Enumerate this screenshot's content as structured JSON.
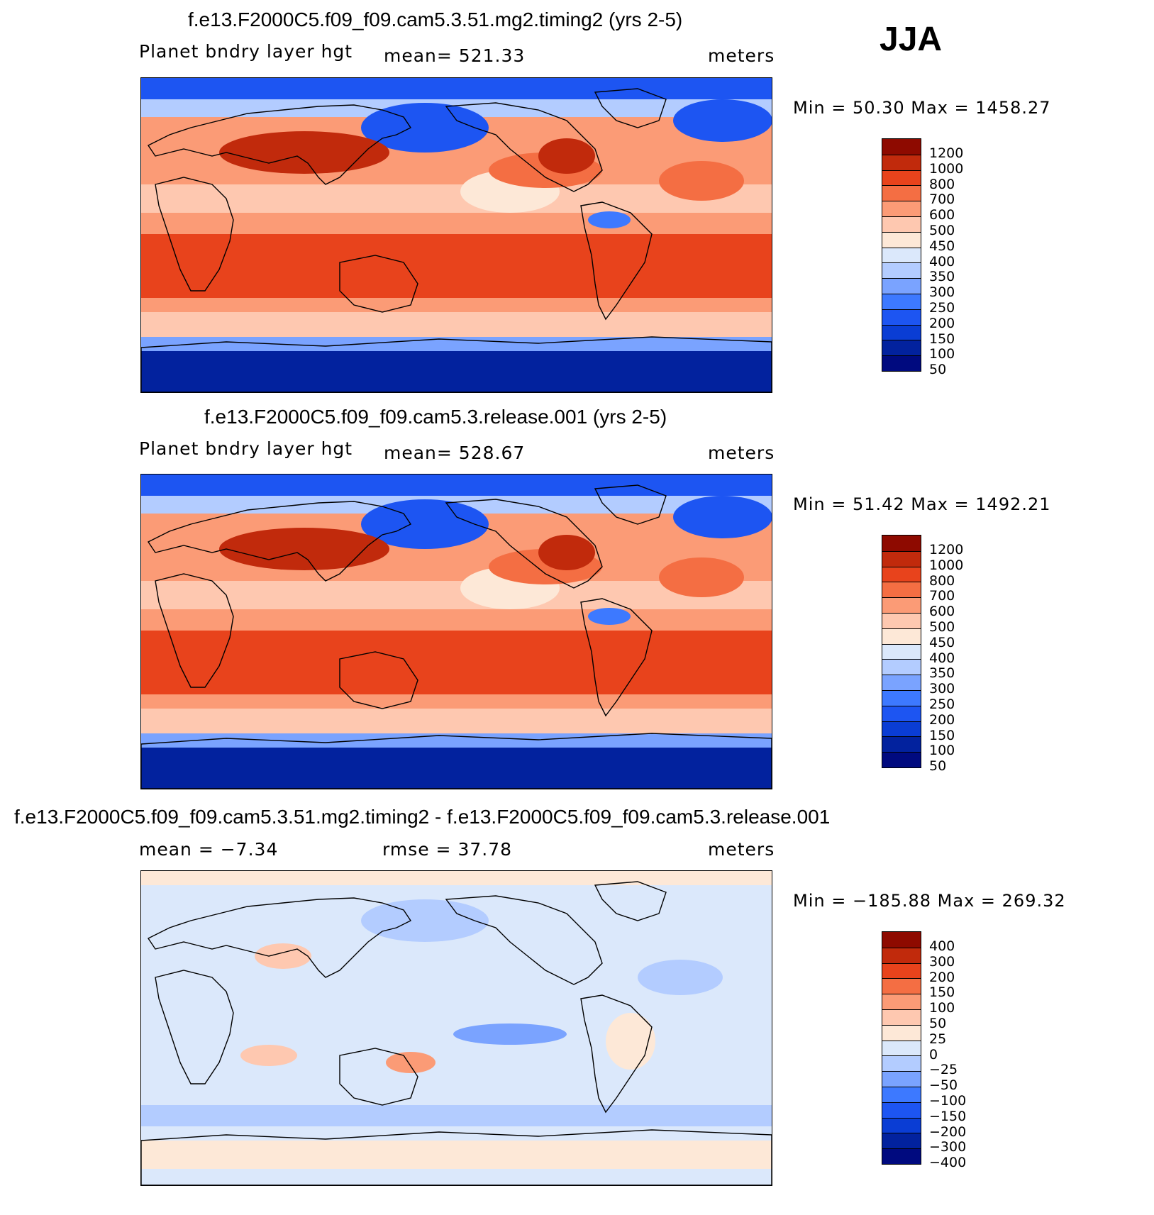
{
  "season": "JJA",
  "palettes": {
    "pbl": [
      "#000a7f",
      "#02229e",
      "#0a3dd4",
      "#1d55f2",
      "#3d79ff",
      "#7aa3ff",
      "#b3ccff",
      "#dbe8fb",
      "#fde8d7",
      "#fec8b0",
      "#fb9b76",
      "#f46e43",
      "#e8431c",
      "#c12a0c",
      "#8e0a00"
    ],
    "diff": [
      "#000a7f",
      "#02229e",
      "#0a3dd4",
      "#1d55f2",
      "#3d79ff",
      "#7aa3ff",
      "#b3ccff",
      "#dbe8fb",
      "#fde8d7",
      "#fec8b0",
      "#fb9b76",
      "#f46e43",
      "#e8431c",
      "#c12a0c",
      "#8e0a00"
    ]
  },
  "panels": [
    {
      "id": "test",
      "title": "f.e13.F2000C5.f09_f09.cam5.3.51.mg2.timing2 (yrs 2-5)",
      "variable": "Planet bndry layer hgt",
      "stat": "mean=  521.33",
      "units": "meters",
      "minmax": "Min =    50.30  Max  =  1458.27",
      "colorbar_labels": [
        "1200",
        "1000",
        "800",
        "700",
        "600",
        "500",
        "450",
        "400",
        "350",
        "300",
        "250",
        "200",
        "150",
        "100",
        "50"
      ],
      "palette": "pbl"
    },
    {
      "id": "control",
      "title": "f.e13.F2000C5.f09_f09.cam5.3.release.001 (yrs 2-5)",
      "variable": "Planet bndry layer hgt",
      "stat": "mean=  528.67",
      "units": "meters",
      "minmax": "Min =    51.42  Max  =  1492.21",
      "colorbar_labels": [
        "1200",
        "1000",
        "800",
        "700",
        "600",
        "500",
        "450",
        "400",
        "350",
        "300",
        "250",
        "200",
        "150",
        "100",
        "50"
      ],
      "palette": "pbl"
    },
    {
      "id": "difference",
      "title": "f.e13.F2000C5.f09_f09.cam5.3.51.mg2.timing2 - f.e13.F2000C5.f09_f09.cam5.3.release.001",
      "variable": "mean  =    −7.34",
      "stat": "rmse  =    37.78",
      "units": "meters",
      "minmax": "Min  =  −185.88  Max  =   269.32",
      "colorbar_labels": [
        "400",
        "300",
        "200",
        "150",
        "100",
        "50",
        "25",
        "0",
        "−25",
        "−50",
        "−100",
        "−150",
        "−200",
        "−300",
        "−400"
      ],
      "palette": "diff"
    }
  ]
}
